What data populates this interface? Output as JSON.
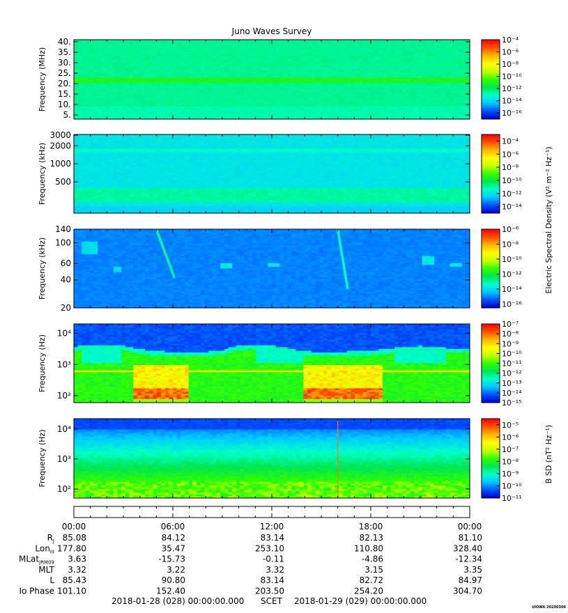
{
  "title": "Juno Waves Survey",
  "colors": {
    "colormap": [
      "#0000c8",
      "#0050ff",
      "#00c8ff",
      "#00ffc8",
      "#00e650",
      "#32ff00",
      "#c8ff00",
      "#ffff00",
      "#ffb400",
      "#ff5000",
      "#ff0000"
    ]
  },
  "colorbars": {
    "electric_label": "Electric Spectral Density (V² m⁻² Hz⁻¹)",
    "magnetic_label": "B SD (nT² Hz⁻¹)"
  },
  "chart_data": [
    {
      "type": "heatmap",
      "name": "panel-hf",
      "ylabel": "Frequency (MHz)",
      "y_scale": "linear",
      "ylim": [
        3,
        41
      ],
      "y_ticks": [
        5,
        10,
        15,
        20,
        25,
        30,
        35,
        40
      ],
      "y_tick_labels": [
        "5.",
        "10.",
        "15.",
        "20.",
        "25.",
        "30.",
        "35.",
        "40."
      ],
      "colorbar_range_exp": [
        -17,
        -4
      ],
      "colorbar_ticks": [
        -4,
        -6,
        -8,
        -10,
        -12,
        -14,
        -16
      ],
      "colorbar_tick_labels": [
        "10⁻⁴",
        "10⁻⁶",
        "10⁻⁸",
        "10⁻¹⁰",
        "10⁻¹²",
        "10⁻¹⁴",
        "10⁻¹⁶"
      ],
      "background_exp": -12.5,
      "bands": [
        {
          "y": 21.5,
          "width": 1.2,
          "exp": -11
        }
      ]
    },
    {
      "type": "heatmap",
      "name": "panel-mf",
      "ylabel": "Frequency (kHz)",
      "y_scale": "log",
      "ylim": [
        150,
        3100
      ],
      "y_ticks": [
        500,
        1000,
        2000,
        3000
      ],
      "y_tick_labels": [
        "500",
        "1000",
        "2000",
        "3000"
      ],
      "colorbar_range_exp": [
        -15,
        -3
      ],
      "colorbar_ticks": [
        -4,
        -6,
        -8,
        -10,
        -12,
        -14
      ],
      "colorbar_tick_labels": [
        "10⁻⁴",
        "10⁻⁶",
        "10⁻⁸",
        "10⁻¹⁰",
        "10⁻¹²",
        "10⁻¹⁴"
      ],
      "background_exp": -12,
      "bands": [
        {
          "y": 300,
          "width_frac": 0.25,
          "exp": -11
        },
        {
          "y": 1700,
          "width_frac": 0.06,
          "exp": -11.5
        }
      ]
    },
    {
      "type": "heatmap",
      "name": "panel-lf",
      "ylabel": "Frequency (kHz)",
      "y_scale": "log",
      "ylim": [
        20,
        140
      ],
      "y_ticks": [
        20,
        40,
        60,
        100,
        140
      ],
      "y_tick_labels": [
        "20",
        "40",
        "60",
        "100",
        "140"
      ],
      "colorbar_range_exp": [
        -16.5,
        -6
      ],
      "colorbar_ticks": [
        -6,
        -8,
        -10,
        -12,
        -14,
        -16
      ],
      "colorbar_tick_labels": [
        "10⁻⁶",
        "10⁻⁸",
        "10⁻¹⁰",
        "10⁻¹²",
        "10⁻¹⁴",
        "10⁻¹⁶"
      ],
      "background_exp": -15,
      "features": [
        {
          "t": [
            0.4,
            1.4
          ],
          "f": [
            75,
            105
          ],
          "exp": -14
        },
        {
          "t": [
            2.3,
            2.9
          ],
          "f": [
            48,
            55
          ],
          "exp": -14
        },
        {
          "t": [
            8.9,
            9.6
          ],
          "f": [
            52,
            60
          ],
          "exp": -13.8
        },
        {
          "t": [
            11.8,
            12.5
          ],
          "f": [
            55,
            60
          ],
          "exp": -13.8
        },
        {
          "t": [
            21.2,
            21.9
          ],
          "f": [
            58,
            72
          ],
          "exp": -13.8
        },
        {
          "t": [
            22.8,
            23.6
          ],
          "f": [
            55,
            60
          ],
          "exp": -13.8
        }
      ],
      "arcs": [
        {
          "t0": 5.0,
          "t1": 6.1,
          "f0": 140,
          "f1": 42,
          "exp": -13
        },
        {
          "t0": 16.0,
          "t1": 16.6,
          "f0": 140,
          "f1": 32,
          "exp": -13.3
        }
      ]
    },
    {
      "type": "heatmap",
      "name": "panel-vlf-e",
      "ylabel": "Frequency (Hz)",
      "y_scale": "log",
      "ylim": [
        60,
        20000
      ],
      "y_ticks": [
        100,
        1000,
        10000
      ],
      "y_tick_labels": [
        "10²",
        "10³",
        "10⁴"
      ],
      "colorbar_range_exp": [
        -15,
        -7
      ],
      "colorbar_ticks": [
        -7,
        -8,
        -9,
        -10,
        -11,
        -12,
        -13,
        -14,
        -15
      ],
      "colorbar_tick_labels": [
        "10⁻⁷",
        "10⁻⁸",
        "10⁻⁹",
        "10⁻¹⁰",
        "10⁻¹¹",
        "10⁻¹²",
        "10⁻¹³",
        "10⁻¹⁴",
        "10⁻¹⁵"
      ],
      "cutoff_hz": [
        3100,
        3400,
        3600,
        3200,
        2600,
        2200,
        2100,
        2100,
        2100,
        2400,
        3300,
        3600,
        3400,
        2700,
        2200,
        2100,
        2100,
        2200,
        2300,
        2600,
        3000,
        3200,
        3000,
        2700,
        2700
      ],
      "line_hz": 600,
      "bursts": [
        {
          "t": [
            3.6,
            7.0
          ],
          "exp": -9
        },
        {
          "t": [
            14.0,
            18.7
          ],
          "exp": -9
        }
      ]
    },
    {
      "type": "heatmap",
      "name": "panel-vlf-b",
      "ylabel": "Frequency (Hz)",
      "y_scale": "log",
      "ylim": [
        50,
        22000
      ],
      "y_ticks": [
        100,
        1000,
        10000
      ],
      "y_tick_labels": [
        "10²",
        "10³",
        "10⁴"
      ],
      "colorbar_range_exp": [
        -11,
        -4.5
      ],
      "colorbar_ticks": [
        -5,
        -6,
        -7,
        -8,
        -9,
        -10,
        -11
      ],
      "colorbar_tick_labels": [
        "10⁻⁵",
        "10⁻⁶",
        "10⁻⁷",
        "10⁻⁸",
        "10⁻⁹",
        "10⁻¹⁰",
        "10⁻¹¹"
      ],
      "spike_t": 16.0
    }
  ],
  "time_axis": {
    "range_hours": [
      0,
      24
    ],
    "tick_hours": [
      0,
      6,
      12,
      18,
      24
    ],
    "tick_labels": [
      "00:00",
      "06:00",
      "12:00",
      "18:00",
      "00:00"
    ]
  },
  "ephemeris": {
    "rows": [
      {
        "label": "R",
        "sub": "J",
        "values": [
          "85.08",
          "84.12",
          "83.14",
          "82.13",
          "81.10"
        ]
      },
      {
        "label": "Lon",
        "sub": "III",
        "values": [
          "177.80",
          "35.47",
          "253.10",
          "110.80",
          "328.40"
        ]
      },
      {
        "label": "MLat",
        "sub": "JRM09",
        "values": [
          "3.63",
          "-15.73",
          "-0.11",
          "-4.86",
          "-12.34"
        ]
      },
      {
        "label": "MLT",
        "sub": "",
        "values": [
          "3.32",
          "3.22",
          "3.32",
          "3.15",
          "3.35"
        ]
      },
      {
        "label": "L",
        "sub": "",
        "values": [
          "85.43",
          "90.80",
          "83.14",
          "82.72",
          "84.97"
        ]
      },
      {
        "label": "Io Phase",
        "sub": "",
        "values": [
          "101.10",
          "152.40",
          "203.50",
          "254.20",
          "304.70"
        ]
      }
    ]
  },
  "footer": {
    "start": "2018-01-28 (028) 00:00:00.000",
    "scet": "SCET",
    "end": "2018-01-29 (029) 00:00:00.000",
    "stamp": "UIOWA 20200306"
  }
}
